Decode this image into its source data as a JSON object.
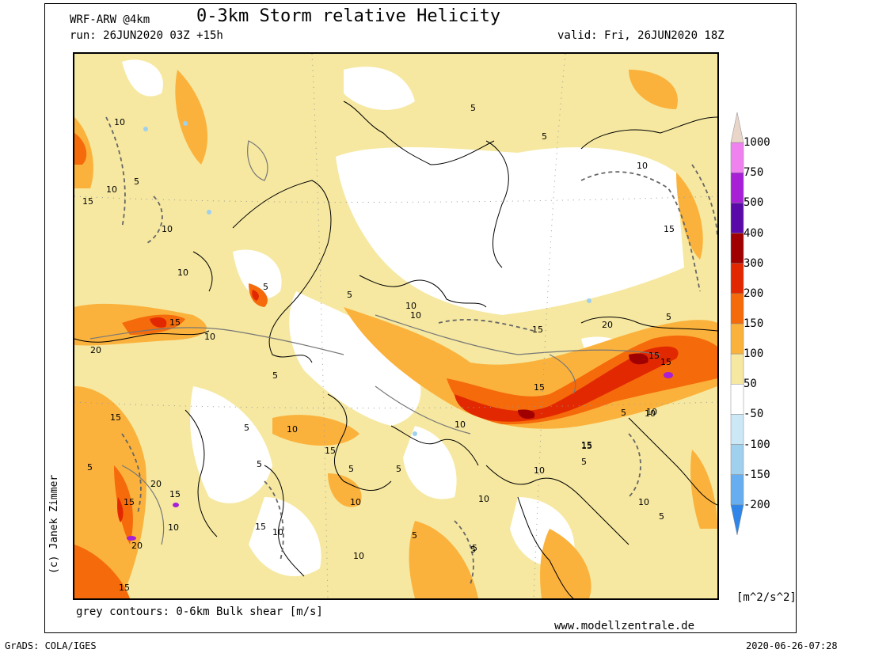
{
  "header": {
    "model": "WRF-ARW @4km",
    "title": "0-3km Storm relative Helicity",
    "run": "run: 26JUN2020 03Z +15h",
    "valid": "valid: Fri, 26JUN2020 18Z"
  },
  "footer": {
    "caption": "grey contours: 0-6km Bulk shear [m/s]",
    "website": "www.modellzentrale.de",
    "software": "GrADS: COLA/IGES",
    "timestamp": "2020-06-26-07:28",
    "author": "(c) Janek Zimmer"
  },
  "legend": {
    "units": "[m^2/s^2]",
    "levels": [
      "1000",
      "750",
      "500",
      "400",
      "300",
      "200",
      "150",
      "100",
      "50",
      "-50",
      "-100",
      "-150",
      "-200"
    ],
    "colors": [
      "#e9d6c9",
      "#ef82ef",
      "#a720d6",
      "#5a0aa8",
      "#a00000",
      "#e22800",
      "#f56a0a",
      "#fbb23c",
      "#f6e8a0",
      "#ffffff",
      "#cce8f6",
      "#9fd0ee",
      "#66aef0",
      "#2f86e8"
    ]
  },
  "map": {
    "contour_labels": [
      {
        "text": "10"
      },
      {
        "text": "10"
      },
      {
        "text": "15"
      },
      {
        "text": "5"
      },
      {
        "text": "10"
      },
      {
        "text": "5"
      },
      {
        "text": "5"
      },
      {
        "text": "10"
      },
      {
        "text": "15"
      },
      {
        "text": "10"
      },
      {
        "text": "20"
      },
      {
        "text": "15"
      },
      {
        "text": "5"
      },
      {
        "text": "5"
      },
      {
        "text": "10"
      },
      {
        "text": "10"
      },
      {
        "text": "5"
      },
      {
        "text": "15"
      },
      {
        "text": "10"
      },
      {
        "text": "15"
      },
      {
        "text": "20"
      },
      {
        "text": "15"
      },
      {
        "text": "15"
      },
      {
        "text": "5"
      },
      {
        "text": "10"
      },
      {
        "text": "5"
      },
      {
        "text": "10"
      },
      {
        "text": "15"
      },
      {
        "text": "10"
      },
      {
        "text": "5"
      },
      {
        "text": "15"
      },
      {
        "text": "5"
      },
      {
        "text": "20"
      },
      {
        "text": "15"
      },
      {
        "text": "15"
      },
      {
        "text": "10"
      },
      {
        "text": "20"
      },
      {
        "text": "15"
      },
      {
        "text": "5"
      },
      {
        "text": "10"
      },
      {
        "text": "15"
      },
      {
        "text": "10"
      },
      {
        "text": "15"
      },
      {
        "text": "5"
      },
      {
        "text": "10"
      },
      {
        "text": "5"
      },
      {
        "text": "10"
      },
      {
        "text": "10"
      },
      {
        "text": "5"
      },
      {
        "text": "10"
      },
      {
        "text": "5"
      },
      {
        "text": "5"
      },
      {
        "text": "15"
      },
      {
        "text": "5"
      },
      {
        "text": "5"
      },
      {
        "text": "10"
      }
    ]
  }
}
